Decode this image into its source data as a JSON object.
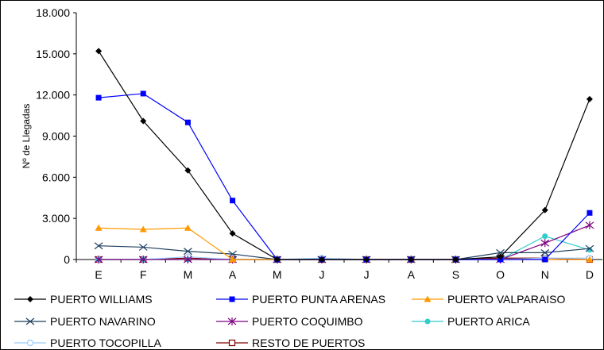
{
  "chart_data": {
    "type": "line",
    "ylabel": "Nº de Llegadas",
    "xlabel": "",
    "categories": [
      "E",
      "F",
      "M",
      "A",
      "M",
      "J",
      "J",
      "A",
      "S",
      "O",
      "N",
      "D"
    ],
    "ylim": [
      0,
      18000
    ],
    "yticks": [
      0,
      3000,
      6000,
      9000,
      12000,
      15000,
      18000
    ],
    "ytick_labels": [
      "0",
      "3.000",
      "6.000",
      "9.000",
      "12.000",
      "15.000",
      "18.000"
    ],
    "grid": false,
    "legend_position": "bottom",
    "series": [
      {
        "name": "PUERTO WILLIAMS",
        "color": "#000000",
        "marker": "diamond",
        "values": [
          15200,
          10100,
          6500,
          1900,
          0,
          0,
          0,
          0,
          0,
          200,
          3600,
          11700
        ]
      },
      {
        "name": "PUERTO PUNTA ARENAS",
        "color": "#0000ff",
        "marker": "square",
        "values": [
          11800,
          12100,
          10000,
          4300,
          0,
          0,
          0,
          0,
          0,
          0,
          0,
          3400
        ]
      },
      {
        "name": "PUERTO VALPARAISO",
        "color": "#ff9900",
        "marker": "triangle",
        "values": [
          2300,
          2200,
          2300,
          0,
          0,
          0,
          0,
          0,
          0,
          0,
          0,
          0
        ]
      },
      {
        "name": "PUERTO NAVARINO",
        "color": "#1f3f5f",
        "marker": "x",
        "values": [
          1000,
          900,
          600,
          400,
          0,
          0,
          0,
          0,
          0,
          500,
          500,
          800
        ]
      },
      {
        "name": "PUERTO COQUIMBO",
        "color": "#800080",
        "marker": "star",
        "values": [
          0,
          0,
          0,
          0,
          0,
          0,
          0,
          0,
          0,
          0,
          1200,
          2500
        ]
      },
      {
        "name": "PUERTO ARICA",
        "color": "#33cccc",
        "marker": "circle",
        "values": [
          0,
          0,
          0,
          0,
          0,
          0,
          0,
          0,
          0,
          0,
          1700,
          700
        ]
      },
      {
        "name": "PUERTO TOCOPILLA",
        "color": "#99ccff",
        "marker": "open-circle",
        "values": [
          0,
          0,
          200,
          0,
          0,
          100,
          0,
          0,
          0,
          0,
          100,
          100
        ]
      },
      {
        "name": "RESTO DE PUERTOS",
        "color": "#800000",
        "marker": "open-square",
        "values": [
          0,
          0,
          100,
          0,
          0,
          0,
          0,
          0,
          0,
          100,
          100,
          0
        ]
      }
    ]
  }
}
